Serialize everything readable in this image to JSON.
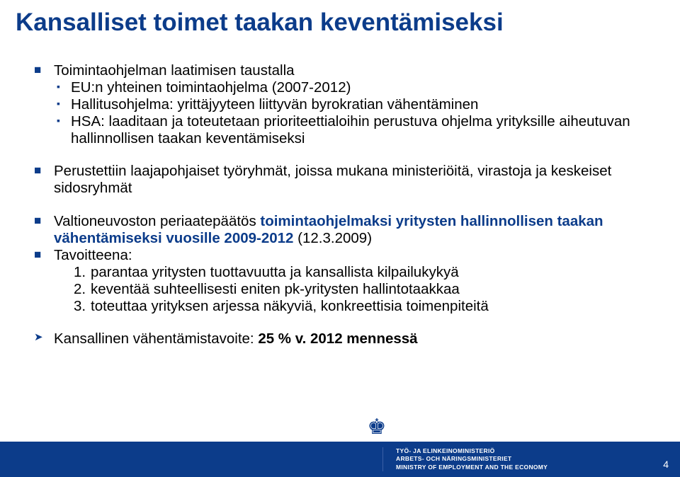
{
  "colors": {
    "brand_blue": "#0c3c8a",
    "text_black": "#000000",
    "background": "#ffffff",
    "footer_bg": "#0c3c8a",
    "footer_text": "#ffffff"
  },
  "title": "Kansalliset toimet taakan keventämiseksi",
  "section1": {
    "heading": "Toimintaohjelman laatimisen taustalla",
    "items": [
      "EU:n yhteinen toimintaohjelma (2007-2012)",
      "Hallitusohjelma: yrittäjyyteen liittyvän byrokratian vähentäminen",
      "HSA: laaditaan ja toteutetaan prioriteettialoihin perustuva ohjelma yrityksille aiheutuvan hallinnollisen taakan keventämiseksi"
    ]
  },
  "section2": {
    "text": "Perustettiin laajapohjaiset työryhmät, joissa mukana ministeriöitä, virastoja ja keskeiset sidosryhmät"
  },
  "section3": {
    "lead": "Valtioneuvoston periaatepäätös ",
    "bold": "toimintaohjelmaksi yritysten hallinnollisen taakan vähentämiseksi vuosille 2009-2012",
    "tail": "(12.3.2009)"
  },
  "section4": {
    "heading": "Tavoitteena:",
    "items": [
      "parantaa yritysten tuottavuutta ja kansallista kilpailukykyä",
      "keventää suhteellisesti eniten pk-yritysten hallintotaakkaa",
      "toteuttaa yrityksen arjessa näkyviä, konkreettisia toimenpiteitä"
    ]
  },
  "goal": {
    "lead": "Kansallinen vähentämistavoite: ",
    "bold": "25 % v. 2012 mennessä"
  },
  "footer": {
    "ministry_line1": "TYÖ- JA ELINKEINOMINISTERIÖ",
    "ministry_line2": "ARBETS- OCH NÄRINGSMINISTERIET",
    "ministry_line3": "MINISTRY OF EMPLOYMENT AND THE ECONOMY",
    "page_number": "4"
  },
  "typography": {
    "title_fontsize": 35,
    "body_fontsize": 20.5,
    "footer_fontsize": 8.5
  }
}
